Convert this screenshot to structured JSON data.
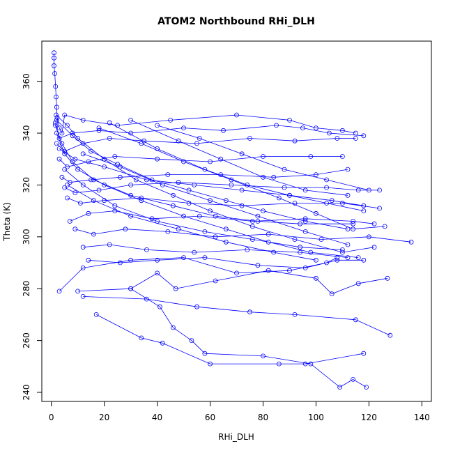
{
  "chart_data": {
    "type": "line",
    "title": "ATOM2 Northbound RHi_DLH",
    "xlabel": "RHi_DLH",
    "ylabel": "Theta (K)",
    "xlim": [
      -3.6,
      143.6
    ],
    "ylim": [
      236.5,
      375.5
    ],
    "xticks": [
      0,
      20,
      40,
      60,
      80,
      100,
      120,
      140
    ],
    "yticks": [
      240,
      260,
      280,
      300,
      320,
      340,
      360
    ],
    "grid": false,
    "legend": "none",
    "marker": "open-circle",
    "color": "#0000ff",
    "series": [
      {
        "points": [
          [
            1,
            371
          ],
          [
            1,
            369
          ],
          [
            1,
            366
          ],
          [
            1.3,
            363
          ],
          [
            1.6,
            358
          ],
          [
            1.8,
            354
          ],
          [
            2,
            350
          ],
          [
            2.2,
            346
          ],
          [
            3,
            342
          ],
          [
            4,
            340
          ],
          [
            5,
            347
          ],
          [
            12,
            345
          ],
          [
            25,
            343
          ],
          [
            45,
            345
          ],
          [
            70,
            347
          ],
          [
            90,
            345
          ],
          [
            100,
            342
          ],
          [
            110,
            341
          ],
          [
            115,
            340
          ]
        ]
      },
      {
        "points": [
          [
            1.5,
            344
          ],
          [
            3,
            338
          ],
          [
            8,
            340
          ],
          [
            18,
            341
          ],
          [
            30,
            340
          ],
          [
            50,
            342
          ],
          [
            65,
            341
          ],
          [
            85,
            343
          ],
          [
            95,
            342
          ],
          [
            105,
            340
          ],
          [
            118,
            339
          ]
        ]
      },
      {
        "points": [
          [
            2,
            336
          ],
          [
            5,
            333
          ],
          [
            12,
            336
          ],
          [
            22,
            338
          ],
          [
            35,
            337
          ],
          [
            55,
            336
          ],
          [
            75,
            338
          ],
          [
            92,
            337
          ],
          [
            108,
            338
          ],
          [
            115,
            338
          ]
        ]
      },
      {
        "points": [
          [
            3,
            330
          ],
          [
            6,
            327
          ],
          [
            14,
            329
          ],
          [
            24,
            331
          ],
          [
            40,
            330
          ],
          [
            60,
            329
          ],
          [
            80,
            331
          ],
          [
            98,
            331
          ],
          [
            110,
            331
          ]
        ]
      },
      {
        "points": [
          [
            4,
            323
          ],
          [
            7,
            321
          ],
          [
            15,
            322
          ],
          [
            26,
            323
          ],
          [
            44,
            324
          ],
          [
            64,
            324
          ],
          [
            84,
            323
          ],
          [
            100,
            324
          ],
          [
            112,
            326
          ]
        ]
      },
      {
        "points": [
          [
            5,
            319
          ],
          [
            9,
            317
          ],
          [
            18,
            318
          ],
          [
            30,
            320
          ],
          [
            48,
            321
          ],
          [
            68,
            320
          ],
          [
            88,
            319
          ],
          [
            104,
            319
          ],
          [
            116,
            318
          ],
          [
            124,
            318
          ]
        ]
      },
      {
        "points": [
          [
            6,
            315
          ],
          [
            11,
            313
          ],
          [
            20,
            314
          ],
          [
            34,
            315
          ],
          [
            52,
            313
          ],
          [
            72,
            312
          ],
          [
            92,
            313
          ],
          [
            110,
            313
          ],
          [
            124,
            311
          ]
        ]
      },
      {
        "points": [
          [
            7,
            306
          ],
          [
            14,
            309
          ],
          [
            24,
            310
          ],
          [
            38,
            307
          ],
          [
            56,
            308
          ],
          [
            76,
            306
          ],
          [
            96,
            307
          ],
          [
            114,
            306
          ],
          [
            122,
            305
          ]
        ]
      },
      {
        "points": [
          [
            9,
            303
          ],
          [
            16,
            301
          ],
          [
            28,
            303
          ],
          [
            44,
            302
          ],
          [
            62,
            300
          ],
          [
            82,
            301
          ],
          [
            102,
            299
          ],
          [
            120,
            300
          ],
          [
            136,
            298
          ]
        ]
      },
      {
        "points": [
          [
            12,
            296
          ],
          [
            22,
            297
          ],
          [
            36,
            295
          ],
          [
            54,
            294
          ],
          [
            74,
            295
          ],
          [
            94,
            294
          ],
          [
            112,
            292
          ]
        ]
      },
      {
        "points": [
          [
            14,
            291
          ],
          [
            26,
            290
          ],
          [
            40,
            291
          ],
          [
            58,
            292
          ],
          [
            78,
            289
          ],
          [
            96,
            288
          ],
          [
            108,
            291
          ],
          [
            118,
            291
          ]
        ]
      },
      {
        "points": [
          [
            3,
            279
          ],
          [
            12,
            288
          ],
          [
            30,
            291
          ],
          [
            50,
            292
          ],
          [
            70,
            286
          ],
          [
            90,
            287
          ],
          [
            104,
            290
          ],
          [
            108,
            292
          ]
        ]
      },
      {
        "points": [
          [
            10,
            279
          ],
          [
            30,
            280
          ],
          [
            40,
            286
          ],
          [
            47,
            280
          ],
          [
            62,
            283
          ],
          [
            82,
            287
          ],
          [
            100,
            284
          ],
          [
            106,
            278
          ],
          [
            116,
            282
          ],
          [
            127,
            284
          ]
        ]
      },
      {
        "points": [
          [
            12,
            277
          ],
          [
            36,
            276
          ],
          [
            55,
            273
          ],
          [
            75,
            271
          ],
          [
            92,
            270
          ],
          [
            115,
            268
          ],
          [
            128,
            262
          ]
        ]
      },
      {
        "points": [
          [
            17,
            270
          ],
          [
            34,
            261
          ],
          [
            42,
            259
          ],
          [
            60,
            251
          ],
          [
            86,
            251
          ],
          [
            96,
            251
          ],
          [
            118,
            255
          ]
        ]
      },
      {
        "points": [
          [
            30,
            280
          ],
          [
            41,
            273
          ],
          [
            46,
            265
          ],
          [
            53,
            260
          ],
          [
            58,
            255
          ],
          [
            80,
            254
          ],
          [
            98,
            251
          ],
          [
            109,
            242
          ],
          [
            114,
            245
          ],
          [
            119,
            242
          ]
        ]
      },
      {
        "points": [
          [
            2,
            345
          ],
          [
            8,
            339
          ],
          [
            15,
            333
          ],
          [
            25,
            328
          ],
          [
            38,
            322
          ],
          [
            52,
            318
          ],
          [
            66,
            314
          ],
          [
            80,
            310
          ],
          [
            96,
            306
          ],
          [
            112,
            303
          ]
        ]
      },
      {
        "points": [
          [
            1.8,
            347
          ],
          [
            6,
            343
          ],
          [
            10,
            338
          ],
          [
            20,
            330
          ],
          [
            32,
            322
          ],
          [
            46,
            316
          ],
          [
            60,
            310
          ],
          [
            76,
            304
          ],
          [
            92,
            299
          ],
          [
            110,
            294
          ],
          [
            122,
            296
          ]
        ]
      },
      {
        "points": [
          [
            2,
            340
          ],
          [
            5,
            332
          ],
          [
            10,
            326
          ],
          [
            20,
            320
          ],
          [
            34,
            314
          ],
          [
            50,
            308
          ],
          [
            66,
            303
          ],
          [
            82,
            298
          ],
          [
            98,
            294
          ],
          [
            116,
            292
          ]
        ]
      },
      {
        "points": [
          [
            1.5,
            343
          ],
          [
            4,
            336
          ],
          [
            8,
            329
          ],
          [
            16,
            322
          ],
          [
            30,
            316
          ],
          [
            46,
            312
          ],
          [
            62,
            308
          ],
          [
            78,
            306
          ],
          [
            94,
            305
          ],
          [
            114,
            305
          ]
        ]
      },
      {
        "points": [
          [
            3,
            334
          ],
          [
            9,
            330
          ],
          [
            20,
            327
          ],
          [
            36,
            322
          ],
          [
            54,
            320
          ],
          [
            72,
            318
          ],
          [
            90,
            316
          ],
          [
            106,
            314
          ],
          [
            118,
            312
          ]
        ]
      },
      {
        "points": [
          [
            5,
            326
          ],
          [
            12,
            320
          ],
          [
            24,
            312
          ],
          [
            40,
            306
          ],
          [
            58,
            302
          ],
          [
            76,
            299
          ],
          [
            94,
            296
          ],
          [
            110,
            295
          ]
        ]
      },
      {
        "points": [
          [
            6,
            320
          ],
          [
            16,
            314
          ],
          [
            30,
            308
          ],
          [
            48,
            303
          ],
          [
            66,
            298
          ],
          [
            84,
            294
          ],
          [
            100,
            291
          ]
        ]
      },
      {
        "points": [
          [
            22,
            344
          ],
          [
            40,
            334
          ],
          [
            58,
            326
          ],
          [
            74,
            320
          ],
          [
            90,
            316
          ],
          [
            104,
            313
          ],
          [
            118,
            310
          ]
        ]
      },
      {
        "points": [
          [
            30,
            345
          ],
          [
            48,
            337
          ],
          [
            64,
            330
          ],
          [
            80,
            323
          ],
          [
            96,
            318
          ],
          [
            112,
            316
          ]
        ]
      },
      {
        "points": [
          [
            18,
            342
          ],
          [
            34,
            336
          ],
          [
            50,
            329
          ],
          [
            68,
            322
          ],
          [
            86,
            315
          ],
          [
            100,
            309
          ],
          [
            114,
            303
          ],
          [
            126,
            304
          ]
        ]
      },
      {
        "points": [
          [
            40,
            343
          ],
          [
            56,
            338
          ],
          [
            72,
            332
          ],
          [
            88,
            326
          ],
          [
            104,
            322
          ],
          [
            120,
            318
          ]
        ]
      },
      {
        "points": [
          [
            12,
            332
          ],
          [
            26,
            327
          ],
          [
            42,
            320
          ],
          [
            60,
            314
          ],
          [
            78,
            308
          ],
          [
            96,
            302
          ],
          [
            112,
            297
          ]
        ]
      }
    ]
  }
}
